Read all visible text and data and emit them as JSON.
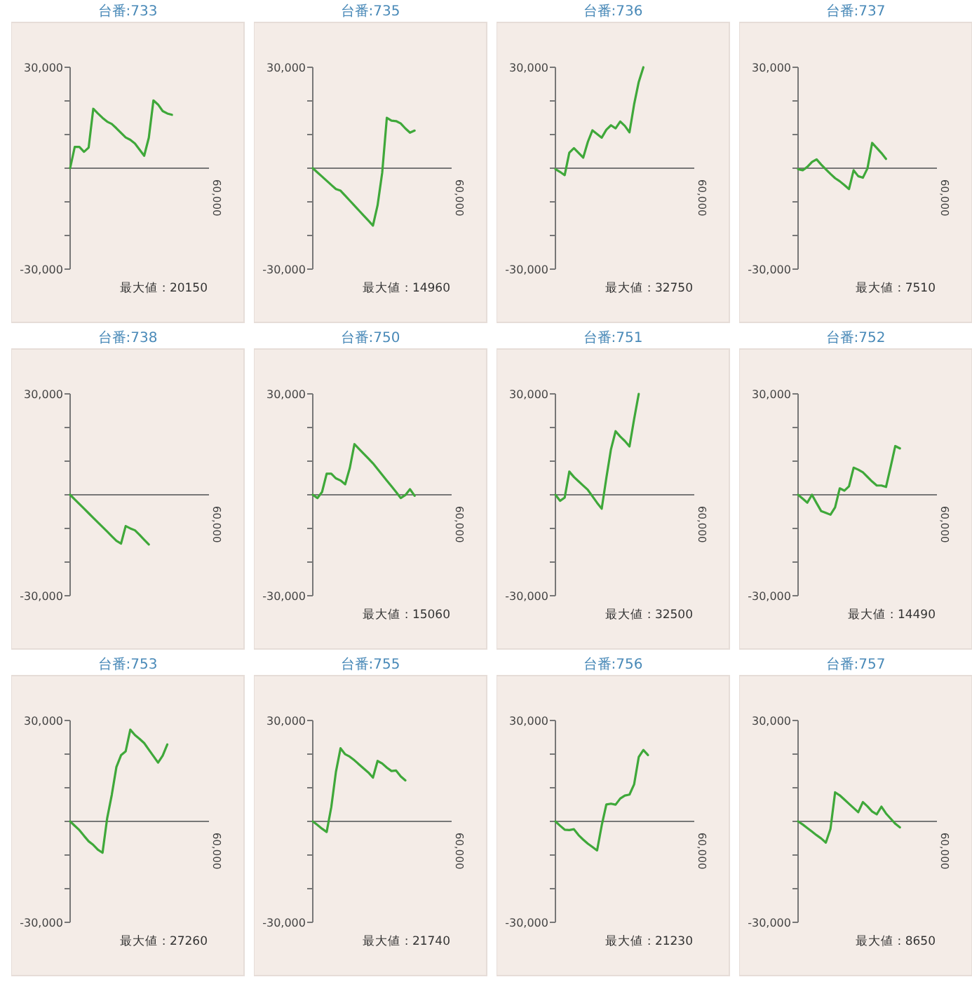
{
  "chart_data": [
    {
      "type": "line",
      "title": "台番:733",
      "ylim": [
        -30000,
        30000
      ],
      "yticks": [
        {
          "value": 30000,
          "label": "30,000"
        },
        {
          "value": 20000,
          "label": null
        },
        {
          "value": 10000,
          "label": null
        },
        {
          "value": 0,
          "label": null
        },
        {
          "value": -10000,
          "label": null
        },
        {
          "value": -20000,
          "label": null
        },
        {
          "value": -30000,
          "label": "-30,000"
        }
      ],
      "color": "#3fa83a",
      "annotations": [
        "60,000",
        "最大値 : 20150"
      ],
      "categories": [
        null,
        null,
        null,
        null,
        null,
        null,
        null,
        null,
        null,
        null,
        null,
        null,
        null,
        null,
        null,
        null,
        null,
        null,
        null,
        null,
        null,
        null,
        null,
        null,
        null,
        null,
        null,
        null,
        null,
        null,
        null
      ],
      "values": [
        0,
        6350,
        6340,
        4880,
        6110,
        17660,
        16280,
        14970,
        13840,
        13160,
        11870,
        10500,
        9140,
        8430,
        7340,
        5520,
        3700,
        9060,
        20150,
        18920,
        16970,
        16260,
        15870,
        null,
        null,
        null,
        null,
        null,
        null,
        null,
        null
      ]
    },
    {
      "type": "line",
      "title": "台番:735",
      "ylim": [
        -30000,
        30000
      ],
      "yticks": [
        {
          "value": 30000,
          "label": "30,000"
        },
        {
          "value": 20000,
          "label": null
        },
        {
          "value": 10000,
          "label": null
        },
        {
          "value": 0,
          "label": null
        },
        {
          "value": -10000,
          "label": null
        },
        {
          "value": -20000,
          "label": null
        },
        {
          "value": -30000,
          "label": "-30,000"
        }
      ],
      "color": "#3fa83a",
      "annotations": [
        "60,000",
        "最大値 : 14960"
      ],
      "categories": [
        null,
        null,
        null,
        null,
        null,
        null,
        null,
        null,
        null,
        null,
        null,
        null,
        null,
        null,
        null,
        null,
        null,
        null,
        null,
        null,
        null,
        null,
        null,
        null,
        null,
        null,
        null,
        null,
        null,
        null,
        null
      ],
      "values": [
        0,
        -1240,
        -2480,
        -3730,
        -4970,
        -6210,
        -6680,
        -8160,
        -9640,
        -11100,
        -12600,
        -14080,
        -15560,
        -17040,
        -11030,
        -1330,
        14960,
        14140,
        14000,
        13300,
        11820,
        10570,
        11180,
        null,
        null,
        null,
        null,
        null,
        null,
        null,
        null
      ]
    },
    {
      "type": "line",
      "title": "台番:736",
      "ylim": [
        -30000,
        30000
      ],
      "yticks": [
        {
          "value": 30000,
          "label": "30,000"
        },
        {
          "value": 20000,
          "label": null
        },
        {
          "value": 10000,
          "label": null
        },
        {
          "value": 0,
          "label": null
        },
        {
          "value": -10000,
          "label": null
        },
        {
          "value": -20000,
          "label": null
        },
        {
          "value": -30000,
          "label": "-30,000"
        }
      ],
      "color": "#3fa83a",
      "annotations": [
        "60,000",
        "最大値 : 32750"
      ],
      "categories": [
        null,
        null,
        null,
        null,
        null,
        null,
        null,
        null,
        null,
        null,
        null,
        null,
        null,
        null,
        null,
        null,
        null,
        null,
        null,
        null,
        null,
        null,
        null,
        null,
        null,
        null,
        null,
        null,
        null,
        null,
        null
      ],
      "values": [
        -280,
        -1100,
        -2070,
        4610,
        5960,
        4540,
        3130,
        7810,
        11260,
        10170,
        9080,
        11430,
        12760,
        11850,
        13870,
        12570,
        10660,
        18970,
        25640,
        30000,
        null,
        null,
        null,
        null,
        null,
        null,
        null,
        null,
        null,
        null,
        null
      ]
    },
    {
      "type": "line",
      "title": "台番:737",
      "ylim": [
        -30000,
        30000
      ],
      "yticks": [
        {
          "value": 30000,
          "label": "30,000"
        },
        {
          "value": 20000,
          "label": null
        },
        {
          "value": 10000,
          "label": null
        },
        {
          "value": 0,
          "label": null
        },
        {
          "value": -10000,
          "label": null
        },
        {
          "value": -20000,
          "label": null
        },
        {
          "value": -30000,
          "label": "-30,000"
        }
      ],
      "color": "#3fa83a",
      "annotations": [
        "60,000",
        "最大値 : 7510"
      ],
      "categories": [
        null,
        null,
        null,
        null,
        null,
        null,
        null,
        null,
        null,
        null,
        null,
        null,
        null,
        null,
        null,
        null,
        null,
        null,
        null,
        null,
        null,
        null,
        null,
        null,
        null,
        null,
        null,
        null,
        null,
        null,
        null
      ],
      "values": [
        -280,
        -620,
        390,
        1830,
        2630,
        1080,
        -330,
        -1700,
        -2960,
        -3880,
        -5000,
        -6210,
        -610,
        -2370,
        -2830,
        -20,
        7510,
        6010,
        4510,
        2760,
        null,
        null,
        null,
        null,
        null,
        null,
        null,
        null,
        null,
        null,
        null
      ]
    },
    {
      "type": "line",
      "title": "台番:738",
      "ylim": [
        -30000,
        30000
      ],
      "yticks": [
        {
          "value": 30000,
          "label": "30,000"
        },
        {
          "value": 20000,
          "label": null
        },
        {
          "value": 10000,
          "label": null
        },
        {
          "value": 0,
          "label": null
        },
        {
          "value": -10000,
          "label": null
        },
        {
          "value": -20000,
          "label": null
        },
        {
          "value": -30000,
          "label": "-30,000"
        }
      ],
      "color": "#3fa83a",
      "annotations": [
        "60,000"
      ],
      "categories": [
        null,
        null,
        null,
        null,
        null,
        null,
        null,
        null,
        null,
        null,
        null,
        null,
        null,
        null,
        null,
        null,
        null,
        null,
        null,
        null,
        null,
        null,
        null,
        null,
        null,
        null,
        null,
        null,
        null,
        null,
        null
      ],
      "values": [
        0,
        -1370,
        -2730,
        -4100,
        -5470,
        -6840,
        -8200,
        -9560,
        -10930,
        -12300,
        -13660,
        -14490,
        -9300,
        -9980,
        -10550,
        -11890,
        -13350,
        -14770,
        null,
        null,
        null,
        null,
        null,
        null,
        null,
        null,
        null,
        null,
        null,
        null,
        null
      ]
    },
    {
      "type": "line",
      "title": "台番:750",
      "ylim": [
        -30000,
        30000
      ],
      "yticks": [
        {
          "value": 30000,
          "label": "30,000"
        },
        {
          "value": 20000,
          "label": null
        },
        {
          "value": 10000,
          "label": null
        },
        {
          "value": 0,
          "label": null
        },
        {
          "value": -10000,
          "label": null
        },
        {
          "value": -20000,
          "label": null
        },
        {
          "value": -30000,
          "label": "-30,000"
        }
      ],
      "color": "#3fa83a",
      "annotations": [
        "60,000",
        "最大値 : 15060"
      ],
      "categories": [
        null,
        null,
        null,
        null,
        null,
        null,
        null,
        null,
        null,
        null,
        null,
        null,
        null,
        null,
        null,
        null,
        null,
        null,
        null,
        null,
        null,
        null,
        null,
        null,
        null,
        null,
        null,
        null,
        null,
        null,
        null
      ],
      "values": [
        0,
        -970,
        830,
        6280,
        6260,
        4890,
        4250,
        3130,
        7980,
        15060,
        13640,
        12230,
        10820,
        9360,
        7650,
        5950,
        4240,
        2530,
        850,
        -970,
        -90,
        1670,
        -280,
        null,
        null,
        null,
        null,
        null,
        null,
        null,
        null
      ]
    },
    {
      "type": "line",
      "title": "台番:751",
      "ylim": [
        -30000,
        30000
      ],
      "yticks": [
        {
          "value": 30000,
          "label": "30,000"
        },
        {
          "value": 20000,
          "label": null
        },
        {
          "value": 10000,
          "label": null
        },
        {
          "value": 0,
          "label": null
        },
        {
          "value": -10000,
          "label": null
        },
        {
          "value": -20000,
          "label": null
        },
        {
          "value": -30000,
          "label": "-30,000"
        }
      ],
      "color": "#3fa83a",
      "annotations": [
        "60,000",
        "最大値 : 32500"
      ],
      "categories": [
        null,
        null,
        null,
        null,
        null,
        null,
        null,
        null,
        null,
        null,
        null,
        null,
        null,
        null,
        null,
        null,
        null,
        null,
        null,
        null,
        null,
        null,
        null,
        null,
        null,
        null,
        null,
        null,
        null,
        null,
        null
      ],
      "values": [
        0,
        -1790,
        -840,
        6900,
        5280,
        4010,
        2740,
        1470,
        -430,
        -2380,
        -4140,
        5010,
        13530,
        18910,
        17310,
        15990,
        14380,
        22520,
        30000,
        null,
        null,
        null,
        null,
        null,
        null,
        null,
        null,
        null,
        null,
        null,
        null
      ]
    },
    {
      "type": "line",
      "title": "台番:752",
      "ylim": [
        -30000,
        30000
      ],
      "yticks": [
        {
          "value": 30000,
          "label": "30,000"
        },
        {
          "value": 20000,
          "label": null
        },
        {
          "value": 10000,
          "label": null
        },
        {
          "value": 0,
          "label": null
        },
        {
          "value": -10000,
          "label": null
        },
        {
          "value": -20000,
          "label": null
        },
        {
          "value": -30000,
          "label": "-30,000"
        }
      ],
      "color": "#3fa83a",
      "annotations": [
        "60,000",
        "最大値 : 14490"
      ],
      "categories": [
        null,
        null,
        null,
        null,
        null,
        null,
        null,
        null,
        null,
        null,
        null,
        null,
        null,
        null,
        null,
        null,
        null,
        null,
        null,
        null,
        null,
        null,
        null,
        null,
        null,
        null,
        null,
        null,
        null,
        null,
        null
      ],
      "values": [
        0,
        -1140,
        -2330,
        10,
        -2470,
        -4860,
        -5380,
        -5910,
        -3710,
        1920,
        1240,
        2520,
        8060,
        7470,
        6670,
        5310,
        3940,
        2760,
        2760,
        2340,
        8300,
        14490,
        13800,
        null,
        null,
        null,
        null,
        null,
        null,
        null,
        null
      ]
    },
    {
      "type": "line",
      "title": "台番:753",
      "ylim": [
        -30000,
        30000
      ],
      "yticks": [
        {
          "value": 30000,
          "label": "30,000"
        },
        {
          "value": 20000,
          "label": null
        },
        {
          "value": 10000,
          "label": null
        },
        {
          "value": 0,
          "label": null
        },
        {
          "value": -10000,
          "label": null
        },
        {
          "value": -20000,
          "label": null
        },
        {
          "value": -30000,
          "label": "-30,000"
        }
      ],
      "color": "#3fa83a",
      "annotations": [
        "60,000",
        "最大値 : 27260"
      ],
      "categories": [
        null,
        null,
        null,
        null,
        null,
        null,
        null,
        null,
        null,
        null,
        null,
        null,
        null,
        null,
        null,
        null,
        null,
        null,
        null,
        null,
        null,
        null,
        null,
        null,
        null,
        null,
        null,
        null,
        null,
        null,
        null
      ],
      "values": [
        0,
        -1300,
        -2590,
        -4290,
        -5910,
        -6990,
        -8430,
        -9320,
        910,
        7900,
        16170,
        19670,
        20830,
        27260,
        25680,
        24540,
        23280,
        21340,
        19400,
        17470,
        19580,
        22880,
        null,
        null,
        null,
        null,
        null,
        null,
        null,
        null,
        null
      ]
    },
    {
      "type": "line",
      "title": "台番:755",
      "ylim": [
        -30000,
        30000
      ],
      "yticks": [
        {
          "value": 30000,
          "label": "30,000"
        },
        {
          "value": 20000,
          "label": null
        },
        {
          "value": 10000,
          "label": null
        },
        {
          "value": 0,
          "label": null
        },
        {
          "value": -10000,
          "label": null
        },
        {
          "value": -20000,
          "label": null
        },
        {
          "value": -30000,
          "label": "-30,000"
        }
      ],
      "color": "#3fa83a",
      "annotations": [
        "60,000",
        "最大値 : 21740"
      ],
      "categories": [
        null,
        null,
        null,
        null,
        null,
        null,
        null,
        null,
        null,
        null,
        null,
        null,
        null,
        null,
        null,
        null,
        null,
        null,
        null,
        null,
        null,
        null,
        null,
        null,
        null,
        null,
        null,
        null,
        null,
        null,
        null
      ],
      "values": [
        0,
        -1040,
        -2170,
        -3150,
        4260,
        14710,
        21740,
        19970,
        19240,
        18160,
        16940,
        15720,
        14550,
        13020,
        17970,
        17210,
        15990,
        14980,
        15120,
        13380,
        12190,
        null,
        null,
        null,
        null,
        null,
        null,
        null,
        null,
        null,
        null
      ]
    },
    {
      "type": "line",
      "title": "台番:756",
      "ylim": [
        -30000,
        30000
      ],
      "yticks": [
        {
          "value": 30000,
          "label": "30,000"
        },
        {
          "value": 20000,
          "label": null
        },
        {
          "value": 10000,
          "label": null
        },
        {
          "value": 0,
          "label": null
        },
        {
          "value": -10000,
          "label": null
        },
        {
          "value": -20000,
          "label": null
        },
        {
          "value": -30000,
          "label": "-30,000"
        }
      ],
      "color": "#3fa83a",
      "annotations": [
        "60,000",
        "最大値 : 21230"
      ],
      "categories": [
        null,
        null,
        null,
        null,
        null,
        null,
        null,
        null,
        null,
        null,
        null,
        null,
        null,
        null,
        null,
        null,
        null,
        null,
        null,
        null,
        null,
        null,
        null,
        null,
        null,
        null,
        null,
        null,
        null,
        null,
        null
      ],
      "values": [
        0,
        -1280,
        -2460,
        -2590,
        -2330,
        -4080,
        -5420,
        -6610,
        -7620,
        -8630,
        -1190,
        5040,
        5270,
        4970,
        6790,
        7690,
        7970,
        11010,
        19120,
        21230,
        19710,
        null,
        null,
        null,
        null,
        null,
        null,
        null,
        null,
        null,
        null
      ]
    },
    {
      "type": "line",
      "title": "台番:757",
      "ylim": [
        -30000,
        30000
      ],
      "yticks": [
        {
          "value": 30000,
          "label": "30,000"
        },
        {
          "value": 20000,
          "label": null
        },
        {
          "value": 10000,
          "label": null
        },
        {
          "value": 0,
          "label": null
        },
        {
          "value": -10000,
          "label": null
        },
        {
          "value": -20000,
          "label": null
        },
        {
          "value": -30000,
          "label": "-30,000"
        }
      ],
      "color": "#3fa83a",
      "annotations": [
        "60,000",
        "最大値 : 8650"
      ],
      "categories": [
        null,
        null,
        null,
        null,
        null,
        null,
        null,
        null,
        null,
        null,
        null,
        null,
        null,
        null,
        null,
        null,
        null,
        null,
        null,
        null,
        null,
        null,
        null,
        null,
        null,
        null,
        null,
        null,
        null,
        null,
        null
      ],
      "values": [
        0,
        -910,
        -1960,
        -3040,
        -4100,
        -5070,
        -6300,
        -2220,
        8650,
        7750,
        6500,
        5240,
        3990,
        2740,
        5750,
        4450,
        2940,
        2100,
        4380,
        2350,
        840,
        -690,
        -1780,
        null,
        null,
        null,
        null,
        null,
        null,
        null,
        null
      ]
    }
  ]
}
